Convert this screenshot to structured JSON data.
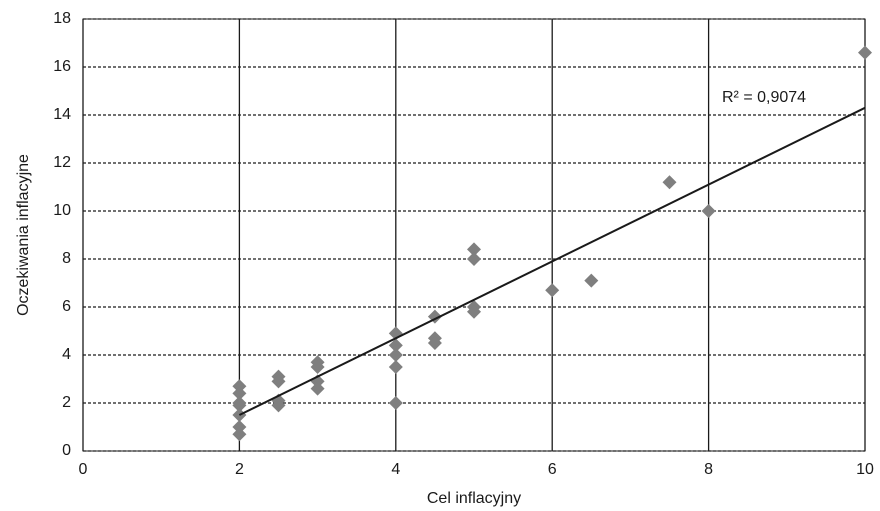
{
  "chart_data": {
    "type": "scatter",
    "x_label": "Cel inflacyjny",
    "y_label": "Oczekiwania inflacyjne",
    "series": [
      {
        "color": "#7f7f7f",
        "x": [
          2,
          2,
          2,
          2,
          2,
          2,
          2,
          2.5,
          2.5,
          2.5,
          2.5,
          3,
          3,
          3,
          3,
          4,
          4,
          4,
          4,
          4,
          4.5,
          4.5,
          4.5,
          5,
          5,
          5,
          5,
          6,
          6.5,
          7.5,
          8,
          10
        ],
        "values": [
          2.7,
          2.4,
          2.0,
          1.9,
          1.5,
          1.0,
          0.7,
          3.1,
          2.9,
          2.1,
          1.9,
          3.7,
          3.5,
          2.9,
          2.6,
          4.9,
          4.4,
          4.0,
          3.5,
          2.0,
          5.6,
          4.7,
          4.5,
          8.4,
          8.0,
          6.0,
          5.8,
          6.7,
          7.1,
          11.2,
          10.0,
          16.6
        ]
      }
    ],
    "trendline": {
      "color": "#1a1a1a",
      "x": [
        2,
        10
      ],
      "values": [
        1.5,
        14.3
      ],
      "label": "R² = 0,9074"
    },
    "xlim": [
      0,
      10
    ],
    "xticks": [
      0,
      2,
      4,
      6,
      8,
      10
    ],
    "ylim": [
      0,
      18
    ],
    "yticks": [
      0,
      2,
      4,
      6,
      8,
      10,
      12,
      14,
      16,
      18
    ],
    "grid": true
  }
}
